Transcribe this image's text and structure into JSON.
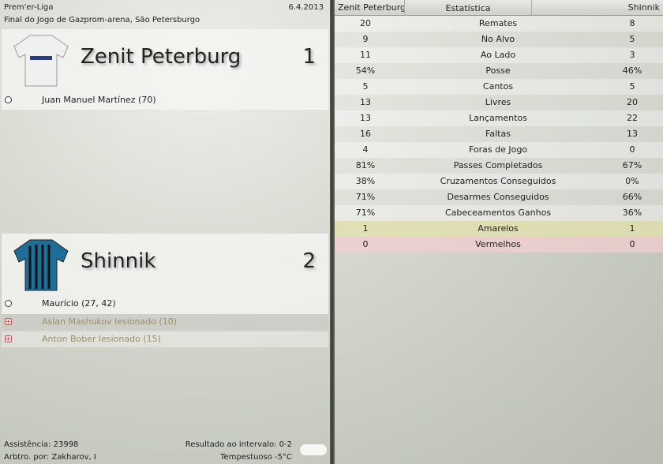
{
  "header": {
    "league": "Prem'er-Liga",
    "date": "6.4.2013",
    "venue": "Final do Jogo de Gazprom-arena, São Petersburgo"
  },
  "home": {
    "name": "Zenit Peterburg",
    "score": "1",
    "shirt_colors": [
      "#f2f2f2",
      "#2a3a8a"
    ],
    "events": [
      {
        "type": "goal",
        "icon": "ball-icon",
        "text": "Juan Manuel Martínez (70)"
      }
    ]
  },
  "away": {
    "name": "Shinnik",
    "score": "2",
    "shirt_colors": [
      "#1d6f9a",
      "#111"
    ],
    "events": [
      {
        "type": "goal",
        "icon": "ball-icon",
        "text": "Maurício (27, 42)"
      },
      {
        "type": "injury",
        "icon": "injury-icon",
        "text": "Aslan Mashukov lesionado (10)"
      },
      {
        "type": "injury",
        "icon": "injury-icon",
        "text": "Anton Bober lesionado (15)"
      }
    ]
  },
  "footer": {
    "attendance": "Assistência: 23998",
    "referee": "Arbtro. por: Zakharov, I",
    "halftime": "Resultado ao intervalo: 0-2",
    "weather": "Tempestuoso -5°C",
    "weather_icon": "cloud-icon"
  },
  "stats": {
    "headers": {
      "home": "Zenit Peterburg",
      "stat": "Estatística",
      "away": "Shinnik"
    },
    "rows": [
      {
        "home": "20",
        "label": "Remates",
        "away": "8"
      },
      {
        "home": "9",
        "label": "No Alvo",
        "away": "5"
      },
      {
        "home": "11",
        "label": "Ao Lado",
        "away": "3"
      },
      {
        "home": "54%",
        "label": "Posse",
        "away": "46%"
      },
      {
        "home": "5",
        "label": "Cantos",
        "away": "5"
      },
      {
        "home": "13",
        "label": "Livres",
        "away": "20"
      },
      {
        "home": "13",
        "label": "Lançamentos",
        "away": "22"
      },
      {
        "home": "16",
        "label": "Faltas",
        "away": "13"
      },
      {
        "home": "4",
        "label": "Foras de Jogo",
        "away": "0"
      },
      {
        "home": "81%",
        "label": "Passes Completados",
        "away": "67%"
      },
      {
        "home": "38%",
        "label": "Cruzamentos Conseguidos",
        "away": "0%"
      },
      {
        "home": "71%",
        "label": "Desarmes Conseguidos",
        "away": "66%"
      },
      {
        "home": "71%",
        "label": "Cabeceamentos Ganhos",
        "away": "36%"
      },
      {
        "home": "1",
        "label": "Amarelos",
        "away": "1"
      },
      {
        "home": "0",
        "label": "Vermelhos",
        "away": "0"
      }
    ]
  }
}
